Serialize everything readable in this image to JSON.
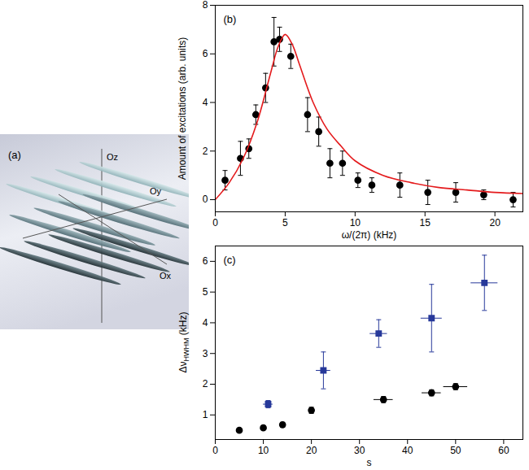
{
  "diagram": {
    "label": "(a)",
    "axes": {
      "z": "Oz",
      "y": "Oy",
      "x": "Ox"
    }
  },
  "chart_data": [
    {
      "type": "scatter",
      "label": "(b)",
      "xlabel": "ω/(2π) (kHz)",
      "ylabel": "Amount of excitations (arb. units)",
      "xlim": [
        0,
        22
      ],
      "ylim": [
        -0.5,
        8
      ],
      "xticks": [
        0,
        5,
        10,
        15,
        20
      ],
      "yticks": [
        0,
        2,
        4,
        6,
        8
      ],
      "grid": false,
      "series": [
        {
          "type": "scatter",
          "marker": "circle",
          "color": "#000000",
          "x": [
            0.7,
            1.8,
            2.4,
            2.9,
            3.6,
            4.2,
            4.6,
            5.4,
            6.6,
            7.4,
            8.2,
            9.1,
            10.2,
            11.2,
            13.2,
            15.2,
            17.2,
            19.2,
            21.3
          ],
          "values": [
            0.8,
            1.7,
            2.1,
            3.5,
            4.6,
            6.5,
            6.6,
            5.9,
            3.5,
            2.8,
            1.5,
            1.5,
            0.8,
            0.6,
            0.6,
            0.3,
            0.3,
            0.2,
            0.0
          ],
          "errors": [
            0.4,
            0.7,
            0.4,
            0.4,
            0.6,
            1.0,
            0.5,
            0.5,
            0.7,
            0.6,
            0.6,
            0.5,
            0.3,
            0.3,
            0.5,
            0.5,
            0.4,
            0.2,
            0.3
          ]
        },
        {
          "type": "line",
          "line_style": "solid",
          "color": "#e41a1c",
          "x": [
            0,
            1,
            2,
            3,
            4,
            4.5,
            5,
            5.5,
            6,
            7,
            8,
            9,
            10,
            12,
            14,
            16,
            18,
            20,
            22
          ],
          "values": [
            0,
            0.7,
            1.7,
            3.2,
            5.3,
            6.3,
            6.8,
            6.4,
            5.6,
            4.0,
            2.9,
            2.2,
            1.6,
            1.0,
            0.7,
            0.5,
            0.4,
            0.3,
            0.25
          ]
        }
      ]
    },
    {
      "type": "scatter",
      "label": "(c)",
      "xlabel": "s",
      "ylabel": {
        "text": "Δν",
        "subscript": "HWHM",
        "suffix": "(kHz)"
      },
      "xlim": [
        0,
        64
      ],
      "ylim": [
        0.2,
        6.5
      ],
      "xticks": [
        0,
        10,
        20,
        30,
        40,
        50,
        60
      ],
      "yticks": [
        1,
        2,
        3,
        4,
        5,
        6
      ],
      "grid": false,
      "series": [
        {
          "type": "scatter",
          "marker": "circle",
          "color": "#000000",
          "x": [
            5,
            10,
            14,
            20,
            35,
            45,
            50
          ],
          "values": [
            0.5,
            0.58,
            0.68,
            1.15,
            1.5,
            1.72,
            1.92
          ],
          "errors": [
            0.04,
            0.05,
            0.08,
            0.1,
            0.1,
            0.1,
            0.1
          ],
          "x_errors": [
            0,
            0,
            0,
            0,
            2,
            2,
            2.5
          ]
        },
        {
          "type": "scatter",
          "marker": "square",
          "color": "#27399a",
          "x": [
            11,
            22.5,
            34,
            45,
            56
          ],
          "values": [
            1.35,
            2.45,
            3.65,
            4.15,
            5.3
          ],
          "errors": [
            0.12,
            0.6,
            0.45,
            1.1,
            0.9
          ],
          "x_errors": [
            1,
            1.5,
            1.8,
            2.2,
            2.8
          ]
        }
      ]
    }
  ]
}
